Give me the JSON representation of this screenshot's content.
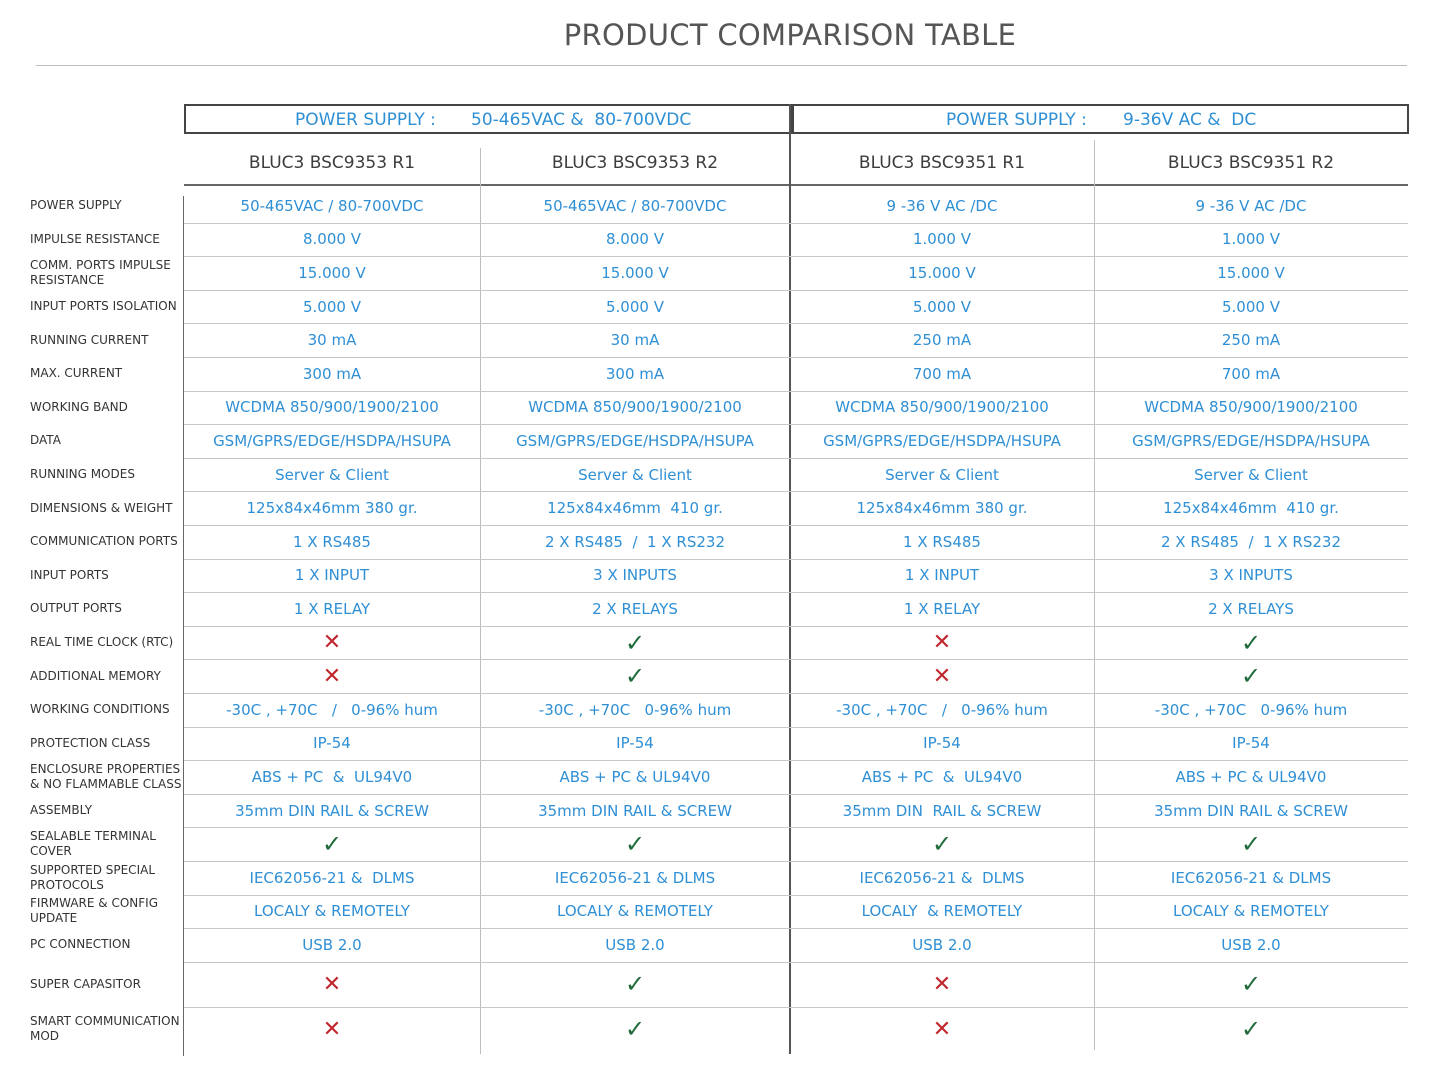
{
  "title": "PRODUCT COMPARISON TABLE",
  "groups": [
    {
      "label": "POWER SUPPLY :",
      "value": "50-465VAC &  80-700VDC"
    },
    {
      "label": "POWER SUPPLY :",
      "value": "9-36V AC &  DC"
    }
  ],
  "models": [
    "BLUC3 BSC9353 R1",
    "BLUC3 BSC9353 R2",
    "BLUC3 BSC9351 R1",
    "BLUC3 BSC9351 R2"
  ],
  "rows": [
    {
      "label": "POWER SUPPLY",
      "values": [
        "50-465VAC / 80-700VDC",
        "50-465VAC / 80-700VDC",
        "9 -36 V AC /DC",
        "9 -36 V AC /DC"
      ]
    },
    {
      "label": "IMPULSE RESISTANCE",
      "values": [
        "8.000 V",
        "8.000 V",
        "1.000 V",
        "1.000 V"
      ]
    },
    {
      "label": "COMM. PORTS IMPULSE RESISTANCE",
      "values": [
        "15.000 V",
        "15.000 V",
        "15.000 V",
        "15.000 V"
      ]
    },
    {
      "label": "INPUT PORTS ISOLATION",
      "values": [
        "5.000 V",
        "5.000 V",
        "5.000 V",
        "5.000 V"
      ]
    },
    {
      "label": "RUNNING CURRENT",
      "values": [
        "30 mA",
        "30 mA",
        "250 mA",
        "250 mA"
      ]
    },
    {
      "label": "MAX. CURRENT",
      "values": [
        "300 mA",
        "300 mA",
        "700 mA",
        "700 mA"
      ]
    },
    {
      "label": "WORKING BAND",
      "values": [
        "WCDMA 850/900/1900/2100",
        "WCDMA 850/900/1900/2100",
        "WCDMA 850/900/1900/2100",
        "WCDMA 850/900/1900/2100"
      ]
    },
    {
      "label": "DATA",
      "values": [
        "GSM/GPRS/EDGE/HSDPA/HSUPA",
        "GSM/GPRS/EDGE/HSDPA/HSUPA",
        "GSM/GPRS/EDGE/HSDPA/HSUPA",
        "GSM/GPRS/EDGE/HSDPA/HSUPA"
      ]
    },
    {
      "label": "RUNNING MODES",
      "values": [
        "Server & Client",
        "Server & Client",
        "Server & Client",
        "Server & Client"
      ]
    },
    {
      "label": "DIMENSIONS & WEIGHT",
      "values": [
        "125x84x46mm 380 gr.",
        "125x84x46mm  410 gr.",
        "125x84x46mm 380 gr.",
        "125x84x46mm  410 gr."
      ]
    },
    {
      "label": "COMMUNICATION PORTS",
      "values": [
        "1 X RS485",
        "2 X RS485  /  1 X RS232",
        "1 X RS485",
        "2 X RS485  /  1 X RS232"
      ]
    },
    {
      "label": "INPUT PORTS",
      "values": [
        "1 X INPUT",
        "3 X INPUTS",
        "1 X INPUT",
        "3 X INPUTS"
      ]
    },
    {
      "label": "OUTPUT PORTS",
      "values": [
        "1 X RELAY",
        "2 X RELAYS",
        "1 X RELAY",
        "2 X RELAYS"
      ]
    },
    {
      "label": "REAL TIME CLOCK (RTC)",
      "values": [
        "✕",
        "✓",
        "✕",
        "✓"
      ]
    },
    {
      "label": "ADDITIONAL MEMORY",
      "values": [
        "✕",
        "✓",
        "✕",
        "✓"
      ]
    },
    {
      "label": "WORKING CONDITIONS",
      "values": [
        "-30C , +70C   /   0-96% hum",
        "-30C , +70C   0-96% hum",
        "-30C , +70C   /   0-96% hum",
        "-30C , +70C   0-96% hum"
      ]
    },
    {
      "label": "PROTECTION CLASS",
      "values": [
        "IP-54",
        "IP-54",
        "IP-54",
        "IP-54"
      ]
    },
    {
      "label": "ENCLOSURE PROPERTIES & NO FLAMMABLE CLASS",
      "values": [
        "ABS + PC  &  UL94V0",
        "ABS + PC & UL94V0",
        "ABS + PC  &  UL94V0",
        "ABS + PC & UL94V0"
      ]
    },
    {
      "label": "ASSEMBLY",
      "values": [
        "35mm DIN RAIL & SCREW",
        "35mm DIN RAIL & SCREW",
        "35mm DIN  RAIL & SCREW",
        "35mm DIN RAIL & SCREW"
      ]
    },
    {
      "label": "SEALABLE TERMINAL COVER",
      "values": [
        "✓",
        "✓",
        "✓",
        "✓"
      ]
    },
    {
      "label": "SUPPORTED SPECIAL PROTOCOLS",
      "values": [
        "IEC62056-21 &  DLMS",
        "IEC62056-21 & DLMS",
        "IEC62056-21 &  DLMS",
        "IEC62056-21 & DLMS"
      ]
    },
    {
      "label": "FIRMWARE & CONFIG UPDATE",
      "values": [
        "LOCALY & REMOTELY",
        "LOCALY & REMOTELY",
        "LOCALY  & REMOTELY",
        "LOCALY & REMOTELY"
      ]
    },
    {
      "label": "PC CONNECTION",
      "values": [
        "USB 2.0",
        "USB 2.0",
        "USB 2.0",
        "USB 2.0"
      ]
    },
    {
      "label": "SUPER CAPASITOR",
      "values": [
        "✕",
        "✓",
        "✕",
        "✓"
      ]
    },
    {
      "label": "SMART COMMUNICATION MOD",
      "values": [
        "✕",
        "✓",
        "✕",
        "✓"
      ]
    }
  ]
}
